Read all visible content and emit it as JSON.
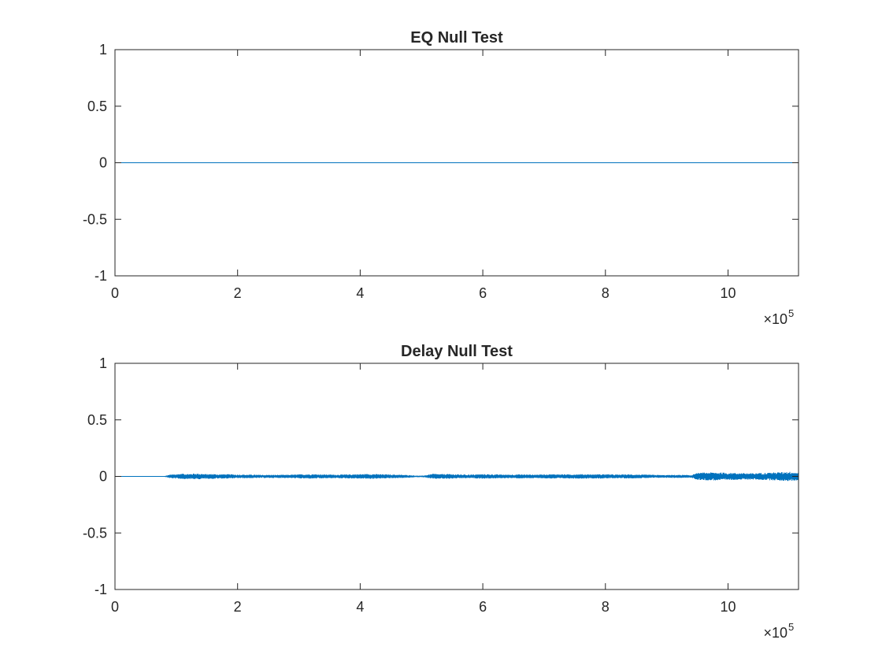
{
  "chart_data": [
    {
      "type": "line",
      "title": "EQ Null Test",
      "xlabel": "",
      "ylabel": "",
      "xlim": [
        0,
        1115000
      ],
      "ylim": [
        -1,
        1
      ],
      "x_ticks": [
        0,
        2,
        4,
        6,
        8,
        10
      ],
      "y_ticks": [
        "-1",
        "-0.5",
        "0",
        "0.5",
        "1"
      ],
      "x_exponent": {
        "base": "×10",
        "power": "5"
      },
      "grid": false,
      "color": "#0072BD",
      "series": [
        {
          "x": [
            0,
            1115000
          ],
          "values": [
            0,
            0
          ]
        }
      ]
    },
    {
      "type": "line",
      "title": "Delay Null Test",
      "xlabel": "",
      "ylabel": "",
      "xlim": [
        0,
        1115000
      ],
      "ylim": [
        -1,
        1
      ],
      "x_ticks": [
        0,
        2,
        4,
        6,
        8,
        10
      ],
      "y_ticks": [
        "-1",
        "-0.5",
        "0",
        "0.5",
        "1"
      ],
      "x_exponent": {
        "base": "×10",
        "power": "5"
      },
      "grid": false,
      "color": "#0072BD",
      "series": [
        {
          "x": [
            0,
            80000,
            90000,
            100000,
            110000,
            120000,
            130000,
            140000,
            150000,
            160000,
            170000,
            180000,
            190000,
            200000,
            220000,
            240000,
            260000,
            280000,
            300000,
            320000,
            340000,
            360000,
            380000,
            400000,
            420000,
            440000,
            460000,
            480000,
            490000,
            500000,
            510000,
            520000,
            530000,
            540000,
            560000,
            580000,
            600000,
            620000,
            640000,
            660000,
            680000,
            700000,
            720000,
            740000,
            760000,
            780000,
            800000,
            820000,
            840000,
            860000,
            880000,
            900000,
            920000,
            940000,
            950000,
            960000,
            980000,
            1000000,
            1020000,
            1040000,
            1060000,
            1080000,
            1100000,
            1115000
          ],
          "envelope": [
            0.0,
            0.002,
            0.016,
            0.02,
            0.024,
            0.022,
            0.026,
            0.024,
            0.02,
            0.022,
            0.018,
            0.02,
            0.018,
            0.016,
            0.016,
            0.014,
            0.014,
            0.014,
            0.018,
            0.02,
            0.018,
            0.016,
            0.018,
            0.02,
            0.022,
            0.018,
            0.016,
            0.012,
            0.008,
            0.006,
            0.014,
            0.024,
            0.02,
            0.022,
            0.018,
            0.016,
            0.02,
            0.018,
            0.016,
            0.018,
            0.016,
            0.018,
            0.02,
            0.018,
            0.02,
            0.018,
            0.02,
            0.016,
            0.018,
            0.016,
            0.014,
            0.012,
            0.014,
            0.012,
            0.03,
            0.034,
            0.036,
            0.032,
            0.03,
            0.028,
            0.032,
            0.036,
            0.042,
            0.034
          ]
        }
      ]
    }
  ]
}
